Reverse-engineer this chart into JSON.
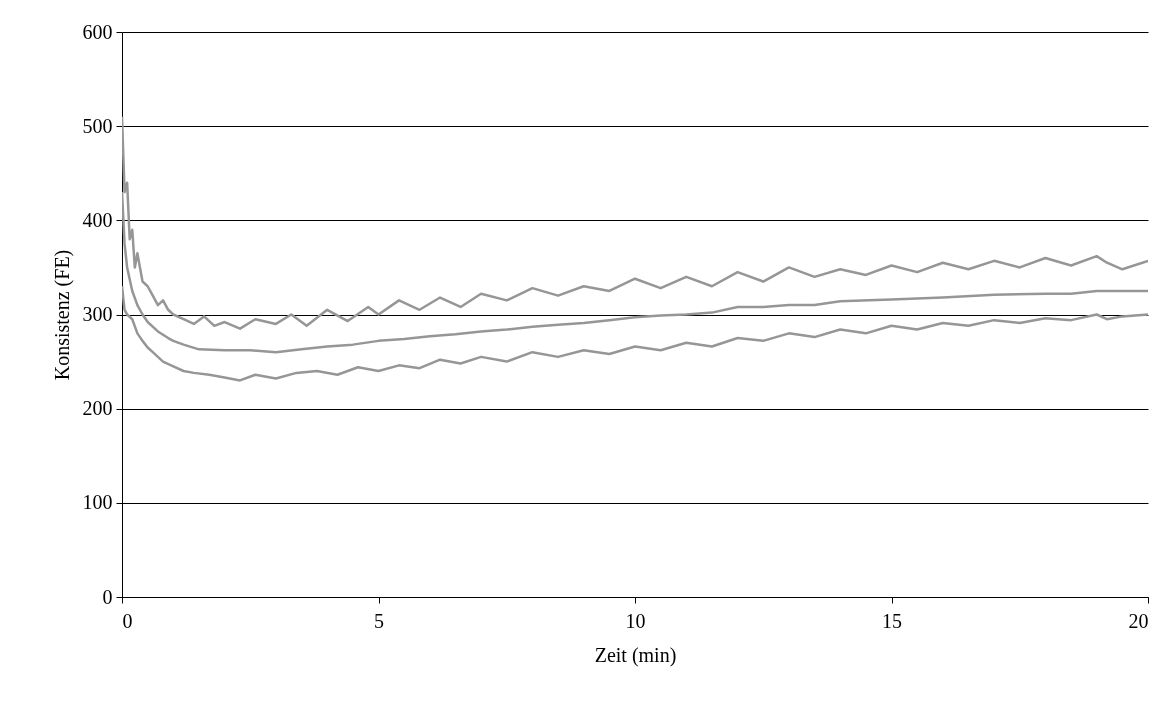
{
  "chart_data": {
    "type": "line",
    "xlabel": "Zeit (min)",
    "ylabel": "Konsistenz (FE)",
    "xlim": [
      0,
      20
    ],
    "ylim": [
      0,
      600
    ],
    "xticks": [
      0,
      5,
      10,
      15,
      20
    ],
    "yticks": [
      0,
      100,
      200,
      300,
      400,
      500,
      600
    ],
    "grid": "y",
    "marker": "none",
    "line_style": "solid",
    "series": [
      {
        "color": "#969696",
        "x": [
          0,
          0.05,
          0.1,
          0.15,
          0.2,
          0.25,
          0.3,
          0.4,
          0.5,
          0.6,
          0.7,
          0.8,
          0.9,
          1,
          1.2,
          1.4,
          1.6,
          1.8,
          2,
          2.3,
          2.6,
          3,
          3.3,
          3.6,
          4,
          4.4,
          4.8,
          5,
          5.4,
          5.8,
          6.2,
          6.6,
          7,
          7.5,
          8,
          8.5,
          9,
          9.5,
          10,
          10.5,
          11,
          11.5,
          12,
          12.5,
          13,
          13.5,
          14,
          14.5,
          15,
          15.5,
          16,
          16.5,
          17,
          17.5,
          18,
          18.5,
          19,
          19.2,
          19.5,
          20
        ],
        "values": [
          510,
          430,
          440,
          380,
          390,
          350,
          365,
          335,
          330,
          320,
          310,
          315,
          305,
          300,
          295,
          290,
          298,
          288,
          292,
          285,
          295,
          290,
          300,
          288,
          305,
          293,
          308,
          300,
          315,
          305,
          318,
          308,
          322,
          315,
          328,
          320,
          330,
          325,
          338,
          328,
          340,
          330,
          345,
          335,
          350,
          340,
          348,
          342,
          352,
          345,
          355,
          348,
          357,
          350,
          360,
          352,
          362,
          355,
          348,
          357
        ]
      },
      {
        "color": "#969696",
        "x": [
          0,
          0.05,
          0.1,
          0.2,
          0.3,
          0.4,
          0.5,
          0.7,
          0.9,
          1,
          1.2,
          1.5,
          2,
          2.5,
          3,
          3.5,
          4,
          4.5,
          5,
          5.5,
          6,
          6.5,
          7,
          7.5,
          8,
          8.5,
          9,
          9.5,
          10,
          10.5,
          11,
          11.5,
          12,
          12.5,
          13,
          13.5,
          14,
          15,
          16,
          17,
          18,
          18.5,
          19,
          20
        ],
        "values": [
          430,
          375,
          350,
          325,
          310,
          300,
          292,
          282,
          275,
          272,
          268,
          263,
          262,
          262,
          260,
          263,
          266,
          268,
          272,
          274,
          277,
          279,
          282,
          284,
          287,
          289,
          291,
          294,
          297,
          299,
          300,
          302,
          308,
          308,
          310,
          310,
          314,
          316,
          318,
          321,
          322,
          322,
          325,
          325
        ]
      },
      {
        "color": "#969696",
        "x": [
          0,
          0.05,
          0.1,
          0.2,
          0.3,
          0.4,
          0.5,
          0.6,
          0.8,
          1,
          1.2,
          1.4,
          1.7,
          2,
          2.3,
          2.6,
          3,
          3.4,
          3.8,
          4.2,
          4.6,
          5,
          5.4,
          5.8,
          6.2,
          6.6,
          7,
          7.5,
          8,
          8.5,
          9,
          9.5,
          10,
          10.5,
          11,
          11.5,
          12,
          12.5,
          13,
          13.5,
          14,
          14.5,
          15,
          15.5,
          16,
          16.5,
          17,
          17.5,
          18,
          18.5,
          19,
          19.2,
          19.5,
          20
        ],
        "values": [
          330,
          305,
          300,
          295,
          280,
          272,
          265,
          260,
          250,
          245,
          240,
          238,
          236,
          233,
          230,
          236,
          232,
          238,
          240,
          236,
          244,
          240,
          246,
          243,
          252,
          248,
          255,
          250,
          260,
          255,
          262,
          258,
          266,
          262,
          270,
          266,
          275,
          272,
          280,
          276,
          284,
          280,
          288,
          284,
          291,
          288,
          294,
          291,
          296,
          294,
          300,
          295,
          298,
          300
        ]
      }
    ]
  }
}
